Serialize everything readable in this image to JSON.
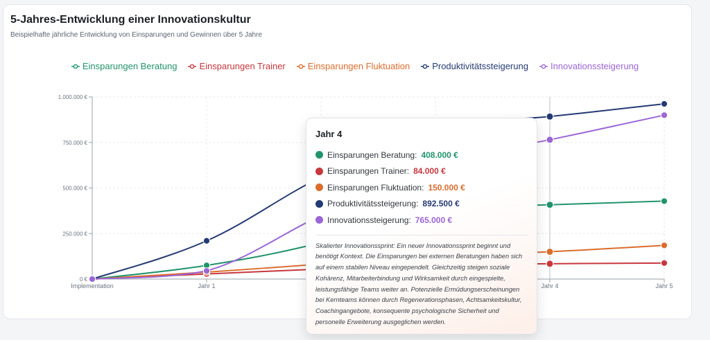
{
  "header": {
    "title": "5-Jahres-Entwicklung einer Innovationskultur",
    "subtitle": "Beispielhafte jährliche Entwicklung von Einsparungen und Gewinnen über 5 Jahre"
  },
  "chart_data": {
    "type": "line",
    "categories": [
      "Implementation",
      "Jahr 1",
      "Jahr 2",
      "Jahr 3",
      "Jahr 4",
      "Jahr 5"
    ],
    "y_ticks": [
      {
        "value": 0,
        "label": "0 €"
      },
      {
        "value": 250000,
        "label": "250.000 €"
      },
      {
        "value": 500000,
        "label": "500.000 €"
      },
      {
        "value": 750000,
        "label": "750.000 €"
      },
      {
        "value": 1000000,
        "label": "1.000.000 €"
      }
    ],
    "ylim": [
      0,
      1000000
    ],
    "grid": true,
    "legend_position": "top",
    "highlighted_category": "Jahr 4",
    "series": [
      {
        "name": "Einsparungen Beratung",
        "color": "#21946a",
        "values": [
          0,
          75000,
          200000,
          390000,
          408000,
          428000
        ]
      },
      {
        "name": "Einsparungen Trainer",
        "color": "#c7383d",
        "values": [
          0,
          28000,
          55000,
          78000,
          84000,
          88000
        ]
      },
      {
        "name": "Einsparungen Fluktuation",
        "color": "#dc6c2c",
        "values": [
          0,
          38000,
          82000,
          125000,
          150000,
          185000
        ]
      },
      {
        "name": "Produktivitätssteigerung",
        "color": "#243a74",
        "values": [
          0,
          210000,
          560000,
          830000,
          892500,
          962000
        ]
      },
      {
        "name": "Innovationssteigerung",
        "color": "#9b66d6",
        "values": [
          0,
          45000,
          350000,
          640000,
          765000,
          900000
        ]
      }
    ]
  },
  "tooltip": {
    "title": "Jahr 4",
    "rows": [
      {
        "label": "Einsparungen Beratung:",
        "value": "408.000 €",
        "color": "#21946a"
      },
      {
        "label": "Einsparungen Trainer:",
        "value": "84.000 €",
        "color": "#c7383d"
      },
      {
        "label": "Einsparungen Fluktuation:",
        "value": "150.000 €",
        "color": "#dc6c2c"
      },
      {
        "label": "Produktivitätssteigerung:",
        "value": "892.500 €",
        "color": "#243a74"
      },
      {
        "label": "Innovationssteigerung:",
        "value": "765.000 €",
        "color": "#9b66d6"
      }
    ],
    "description": "Skalierter Innovationssprint: Ein neuer Innovationssprint beginnt und benötigt Kontext. Die Einsparungen bei externen Beratungen haben sich auf einem stabilen Niveau eingependelt. Gleichzeitig steigen soziale Kohärenz, Mitarbeiterbindung und Wirksamkeit durch eingespielte, leistungsfähige Teams weiter an. Potenzielle Ermüdungserscheinungen bei Kernteams können durch Regenerationsphasen, Achtsamkeitskultur, Coachingangebote, konsequente psychologische Sicherheit und personelle Erweiterung ausgeglichen werden."
  }
}
